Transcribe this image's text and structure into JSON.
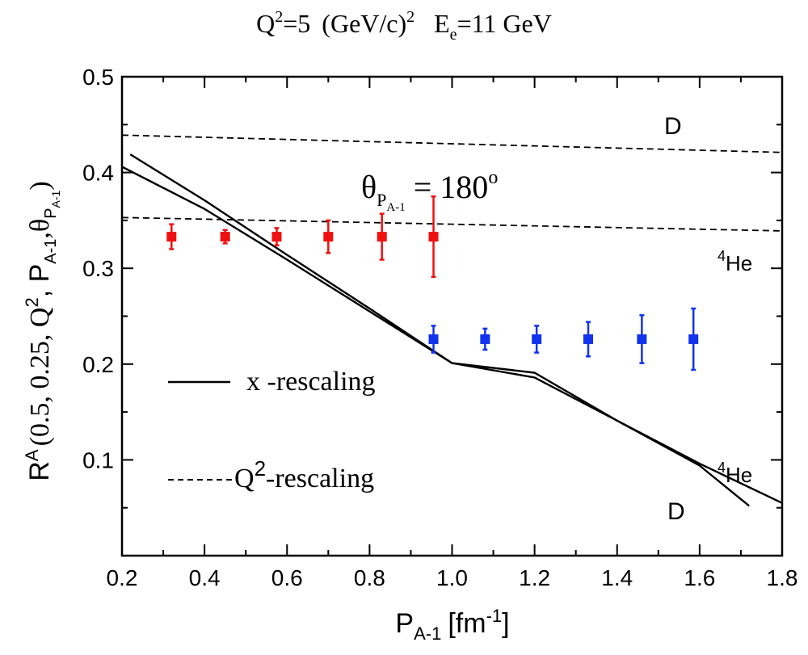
{
  "chart_data": {
    "type": "line",
    "title": {
      "q_symbol": "Q",
      "q_sup": "2",
      "q_value": "=5",
      "unit_text": "(GeV/c)",
      "unit_sup": "2",
      "e_symbol": "E",
      "e_sub": "e",
      "e_value": "=11 GeV"
    },
    "xlabel": {
      "main": "P",
      "sub": "A-1",
      "unit": "[fm",
      "unit_sup": "-1",
      "unit_close": "]"
    },
    "ylabel": {
      "r": "R",
      "r_sup": "A",
      "open": "(0.5, 0.25, Q",
      "q_sup": "2",
      "mid": ", P",
      "p_sub": "A-1",
      "comma": ",",
      "theta": "θ",
      "theta_sub": "P",
      "theta_subsub": "A-1",
      "close": ")"
    },
    "xlim": [
      0.2,
      1.8
    ],
    "ylim": [
      0.0,
      0.5
    ],
    "x_ticks": [
      0.2,
      0.4,
      0.6,
      0.8,
      1.0,
      1.2,
      1.4,
      1.6,
      1.8
    ],
    "x_tick_labels": [
      "0.2",
      "0.4",
      "0.6",
      "0.8",
      "1.0",
      "1.2",
      "1.4",
      "1.6",
      "1.8"
    ],
    "y_ticks": [
      0.1,
      0.2,
      0.3,
      0.4,
      0.5
    ],
    "y_tick_labels": [
      "0.1",
      "0.2",
      "0.3",
      "0.4",
      "0.5"
    ],
    "x_minor_step": 0.1,
    "y_minor_step": 0.05,
    "legend": [
      {
        "label": "x -rescaling",
        "style": "solid"
      },
      {
        "label_main": "Q",
        "label_sup": "2",
        "label_rest": "-rescaling",
        "style": "dashed"
      }
    ],
    "angle_annotation": {
      "theta": "θ",
      "sub": "P",
      "subsub": "A-1",
      "value": " = 180",
      "sup": "o"
    },
    "curve_labels": {
      "d_dashed": "D",
      "he_dashed_sup": "4",
      "he_dashed": "He",
      "he_solid_sup": "4",
      "he_solid": "He",
      "d_solid": "D"
    },
    "series": [
      {
        "name": "D x-rescaling",
        "style": "solid",
        "x": [
          0.22,
          0.4,
          0.6,
          0.8,
          1.0,
          1.2,
          1.4,
          1.6,
          1.72
        ],
        "y": [
          0.419,
          0.371,
          0.314,
          0.258,
          0.201,
          0.186,
          0.141,
          0.094,
          0.052
        ]
      },
      {
        "name": "4He x-rescaling",
        "style": "solid",
        "x": [
          0.2,
          0.4,
          0.6,
          0.8,
          1.0,
          1.2,
          1.4,
          1.6,
          1.8
        ],
        "y": [
          0.406,
          0.362,
          0.309,
          0.255,
          0.201,
          0.191,
          0.141,
          0.096,
          0.055
        ]
      },
      {
        "name": "D Q2-rescaling",
        "style": "dashed",
        "x": [
          0.2,
          1.8
        ],
        "y": [
          0.439,
          0.421
        ]
      },
      {
        "name": "4He Q2-rescaling",
        "style": "dashed",
        "x": [
          0.2,
          1.8
        ],
        "y": [
          0.353,
          0.339
        ]
      }
    ],
    "points": [
      {
        "name": "red data",
        "color": "#ee1111",
        "x": [
          0.32,
          0.45,
          0.575,
          0.7,
          0.83,
          0.955
        ],
        "y": [
          0.333,
          0.333,
          0.333,
          0.333,
          0.333,
          0.333
        ],
        "err": [
          0.013,
          0.007,
          0.009,
          0.017,
          0.024,
          0.042
        ]
      },
      {
        "name": "blue data",
        "color": "#1133ee",
        "x": [
          0.955,
          1.08,
          1.205,
          1.33,
          1.46,
          1.585
        ],
        "y": [
          0.226,
          0.226,
          0.226,
          0.226,
          0.226,
          0.226
        ],
        "err": [
          0.014,
          0.011,
          0.014,
          0.018,
          0.025,
          0.032
        ]
      }
    ]
  }
}
